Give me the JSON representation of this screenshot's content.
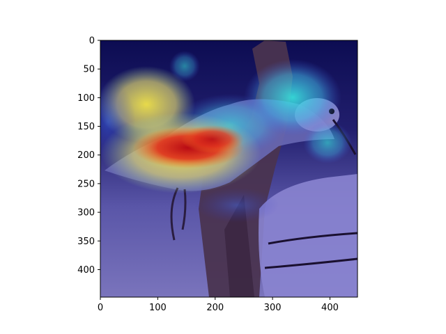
{
  "image": {
    "subject": "hummingbird perched on a feeder",
    "overlay": "attention heatmap (jet colormap)",
    "colors": {
      "background_dark": "#0a0a3a",
      "wood": "#5a3e52",
      "bird_body": "#6a6ab0",
      "heat_red": "#c8101c",
      "heat_yellow": "#f0e04a",
      "heat_cyan": "#40e0e0"
    }
  },
  "axes": {
    "xlim": [
      0,
      448
    ],
    "ylim": [
      448,
      0
    ],
    "x_ticks": [
      0,
      100,
      200,
      300,
      400
    ],
    "y_ticks": [
      0,
      50,
      100,
      150,
      200,
      250,
      300,
      350,
      400
    ],
    "x_tick_labels": [
      "0",
      "100",
      "200",
      "300",
      "400"
    ],
    "y_tick_labels": [
      "0",
      "50",
      "100",
      "150",
      "200",
      "250",
      "300",
      "350",
      "400"
    ]
  }
}
